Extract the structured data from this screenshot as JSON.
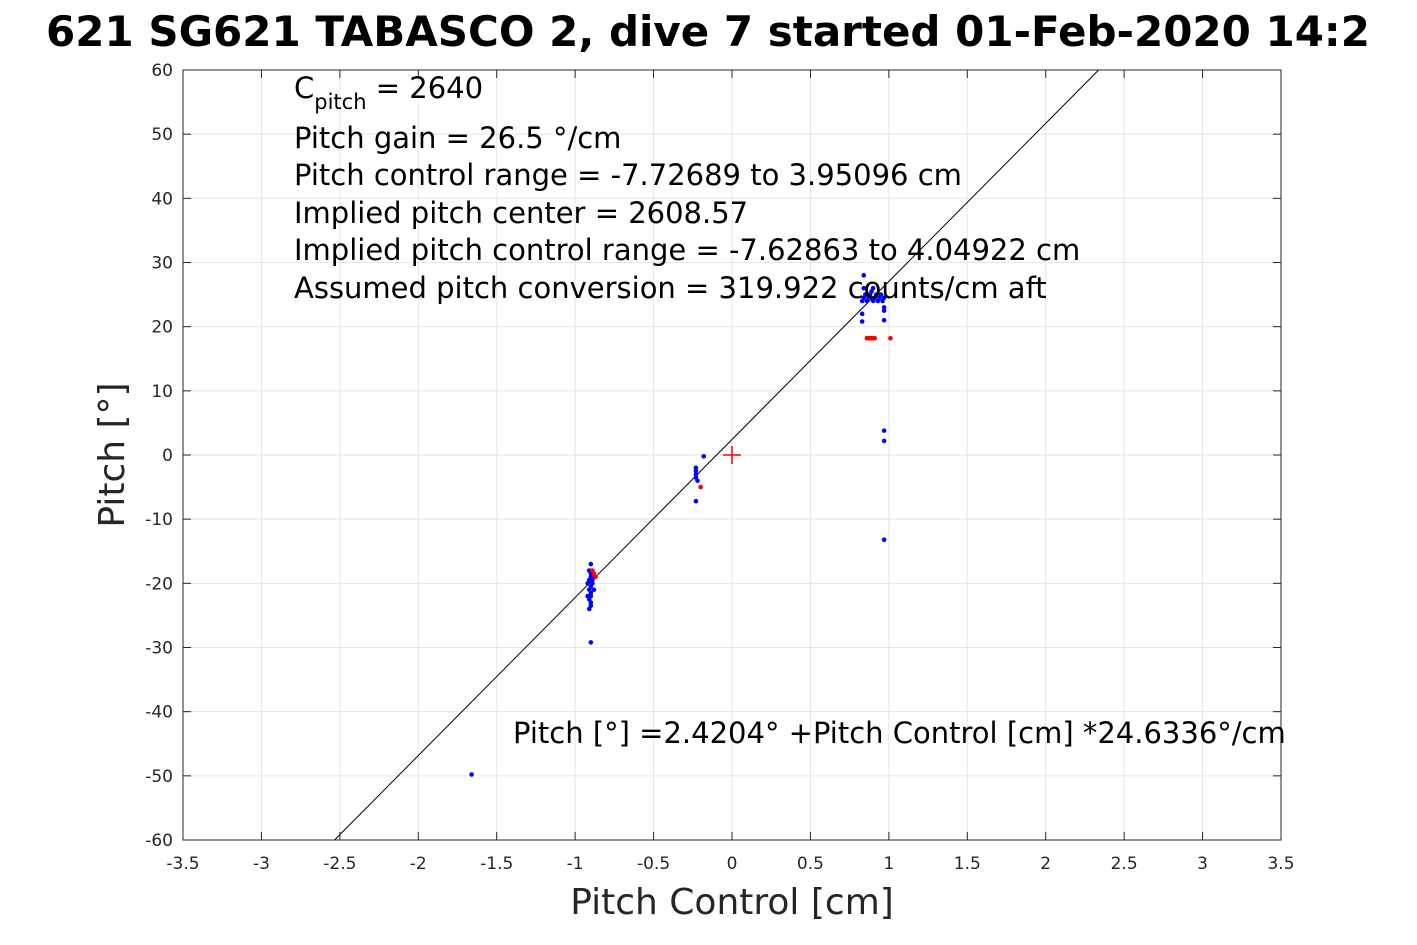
{
  "chart_data": {
    "type": "scatter",
    "title": "621 SG621 TABASCO 2, dive 7 started 01-Feb-2020 14:2",
    "xlabel": "Pitch Control [cm]",
    "ylabel": "Pitch [°]",
    "xlim": [
      -3.5,
      3.5
    ],
    "ylim": [
      -60,
      60
    ],
    "grid": true,
    "x_ticks": [
      "-3.5",
      "-3",
      "-2.5",
      "-2",
      "-1.5",
      "-1",
      "-0.5",
      "0",
      "0.5",
      "1",
      "1.5",
      "2",
      "2.5",
      "3",
      "3.5"
    ],
    "y_ticks": [
      "60",
      "50",
      "40",
      "30",
      "20",
      "10",
      "0",
      "-10",
      "-20",
      "-30",
      "-40",
      "-50",
      "-60"
    ],
    "annotations": {
      "c_pitch_main": "C",
      "c_pitch_sub": "pitch",
      "c_pitch_value": " = 2640",
      "pitch_gain": "Pitch gain = 26.5 °/cm",
      "pitch_control_range": "Pitch control range = -7.72689 to 3.95096 cm",
      "implied_pitch_center": "Implied pitch center = 2608.57",
      "implied_pitch_control_range": "Implied pitch control range = -7.62863 to 4.04922 cm",
      "assumed_pitch_conversion": "Assumed pitch conversion = 319.922 counts/cm aft",
      "fit_equation": "Pitch [°] =2.4204° +Pitch Control [cm] *24.6336°/cm"
    },
    "fit_line": {
      "intercept": 2.4204,
      "slope": 24.6336
    },
    "center_marker": {
      "x": 0,
      "y": 0,
      "color": "#ff0000"
    },
    "series": [
      {
        "color": "#0000ff",
        "points": [
          [
            -0.9,
            -17
          ],
          [
            -0.91,
            -18
          ],
          [
            -0.9,
            -18.5
          ],
          [
            -0.9,
            -19
          ],
          [
            -0.91,
            -19.5
          ],
          [
            -0.89,
            -20
          ],
          [
            -0.9,
            -20.5
          ],
          [
            -0.91,
            -21
          ],
          [
            -0.9,
            -21.5
          ],
          [
            -0.9,
            -22
          ],
          [
            -0.91,
            -22.5
          ],
          [
            -0.9,
            -23
          ],
          [
            -0.9,
            -23.5
          ],
          [
            -0.91,
            -24
          ],
          [
            -0.88,
            -19
          ],
          [
            -0.89,
            -19.5
          ],
          [
            -0.92,
            -20
          ],
          [
            -0.88,
            -21
          ],
          [
            -0.92,
            -22
          ],
          [
            -0.89,
            -18.8
          ],
          [
            -0.9,
            -29.2
          ],
          [
            -1.66,
            -49.8
          ],
          [
            -0.23,
            -2
          ],
          [
            -0.23,
            -2.5
          ],
          [
            -0.23,
            -3
          ],
          [
            -0.23,
            -3.5
          ],
          [
            -0.22,
            -4
          ],
          [
            -0.23,
            -7.2
          ],
          [
            -0.18,
            -0.2
          ],
          [
            0.83,
            24
          ],
          [
            0.84,
            24.5
          ],
          [
            0.85,
            25
          ],
          [
            0.86,
            24
          ],
          [
            0.87,
            24.5
          ],
          [
            0.88,
            25
          ],
          [
            0.89,
            25.5
          ],
          [
            0.9,
            24
          ],
          [
            0.91,
            24.5
          ],
          [
            0.92,
            25
          ],
          [
            0.93,
            24
          ],
          [
            0.94,
            24.5
          ],
          [
            0.95,
            25
          ],
          [
            0.96,
            24
          ],
          [
            0.97,
            24.5
          ],
          [
            0.97,
            23
          ],
          [
            0.97,
            22.5
          ],
          [
            0.84,
            26
          ],
          [
            0.84,
            28
          ],
          [
            0.83,
            22
          ],
          [
            0.83,
            20.8
          ],
          [
            0.97,
            21
          ],
          [
            0.9,
            26
          ],
          [
            0.97,
            3.8
          ],
          [
            0.97,
            2.2
          ],
          [
            0.97,
            -13.2
          ]
        ]
      },
      {
        "color": "#ff0000",
        "points": [
          [
            -0.88,
            -18.5
          ],
          [
            -0.87,
            -19
          ],
          [
            -0.89,
            -18
          ],
          [
            -0.2,
            -5
          ],
          [
            0.86,
            18.2
          ],
          [
            0.87,
            18.2
          ],
          [
            0.88,
            18.2
          ],
          [
            0.89,
            18.2
          ],
          [
            0.9,
            18.2
          ],
          [
            0.91,
            18.2
          ],
          [
            1.01,
            18.2
          ]
        ]
      }
    ]
  }
}
